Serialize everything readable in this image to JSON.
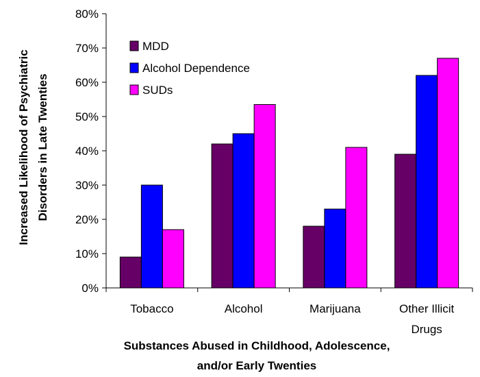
{
  "chart_data": {
    "type": "bar",
    "categories": [
      [
        "Tobacco"
      ],
      [
        "Alcohol"
      ],
      [
        "Marijuana"
      ],
      [
        "Other Illicit",
        "Drugs"
      ]
    ],
    "series": [
      {
        "name": "MDD",
        "color": "#660066",
        "values": [
          9,
          42,
          18,
          39
        ]
      },
      {
        "name": "Alcohol Dependence",
        "color": "#0000ff",
        "values": [
          30,
          45,
          23,
          62
        ]
      },
      {
        "name": "SUDs",
        "color": "#ff00ff",
        "values": [
          17,
          53.5,
          41,
          67
        ]
      }
    ],
    "ylim": [
      0,
      80
    ],
    "yticks": [
      "0%",
      "10%",
      "20%",
      "30%",
      "40%",
      "50%",
      "60%",
      "70%",
      "80%"
    ],
    "ylabel": [
      "Increased Likelihood of Psychiatric",
      "Disorders in Late Twenties"
    ],
    "xlabel": [
      "Substances Abused in Childhood, Adolescence,",
      "and/or Early Twenties"
    ],
    "grid": false,
    "legend_position": "top-left"
  }
}
